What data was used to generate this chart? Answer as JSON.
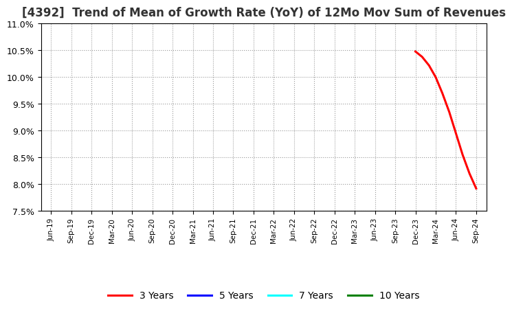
{
  "title": "[4392]  Trend of Mean of Growth Rate (YoY) of 12Mo Mov Sum of Revenues",
  "title_fontsize": 12,
  "background_color": "#ffffff",
  "plot_bg_color": "#ffffff",
  "grid_color": "#999999",
  "ylim": [
    0.075,
    0.11
  ],
  "yticks": [
    0.075,
    0.08,
    0.085,
    0.09,
    0.095,
    0.1,
    0.105,
    0.11
  ],
  "ytick_labels": [
    "7.5%",
    "8.0%",
    "8.5%",
    "9.0%",
    "9.5%",
    "10.0%",
    "10.5%",
    "11.0%"
  ],
  "xtick_labels": [
    "Jun-19",
    "Sep-19",
    "Dec-19",
    "Mar-20",
    "Jun-20",
    "Sep-20",
    "Dec-20",
    "Mar-21",
    "Jun-21",
    "Sep-21",
    "Dec-21",
    "Mar-22",
    "Jun-22",
    "Sep-22",
    "Dec-22",
    "Mar-23",
    "Jun-23",
    "Sep-23",
    "Dec-23",
    "Mar-24",
    "Jun-24",
    "Sep-24"
  ],
  "series": [
    {
      "label": "3 Years",
      "color": "#ff0000",
      "linewidth": 2.2,
      "x_indices": [
        18,
        18.33,
        18.67,
        19,
        19.33,
        19.67,
        20,
        20.33,
        20.67,
        21
      ],
      "y_values": [
        0.1048,
        0.1038,
        0.1022,
        0.1,
        0.097,
        0.0935,
        0.0895,
        0.0855,
        0.082,
        0.0792
      ]
    },
    {
      "label": "5 Years",
      "color": "#0000ff",
      "linewidth": 2.2,
      "x_indices": [],
      "y_values": []
    },
    {
      "label": "7 Years",
      "color": "#00ffff",
      "linewidth": 2.2,
      "x_indices": [],
      "y_values": []
    },
    {
      "label": "10 Years",
      "color": "#008000",
      "linewidth": 2.2,
      "x_indices": [],
      "y_values": []
    }
  ],
  "legend_ncol": 4,
  "legend_fontsize": 10
}
